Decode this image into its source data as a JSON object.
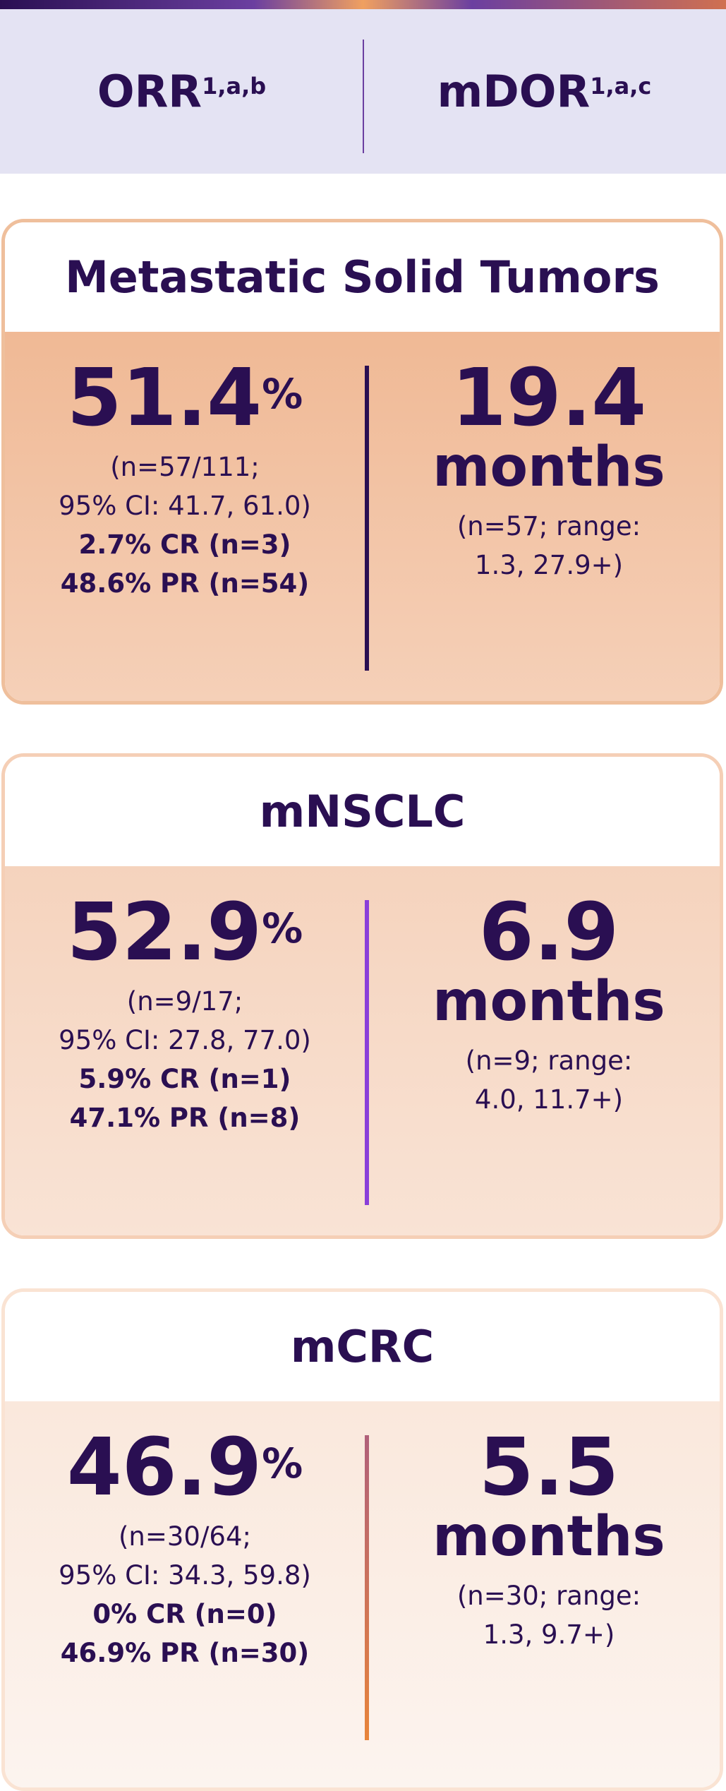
{
  "header": {
    "orr": {
      "label": "ORR",
      "superscript": "1,a,b"
    },
    "mdor": {
      "label": "mDOR",
      "superscript": "1,a,c"
    }
  },
  "cards": [
    {
      "title": "Metastatic Solid Tumors",
      "orr": {
        "value": "51.4",
        "unit": "%",
        "details": [
          "(n=57/111;",
          "95% CI: 41.7, 61.0)"
        ],
        "bold_details": [
          "2.7% CR (n=3)",
          "48.6% PR (n=54)"
        ]
      },
      "mdor": {
        "value": "19.4",
        "unit": "months",
        "details": [
          "(n=57; range:",
          "1.3, 27.9+)"
        ]
      }
    },
    {
      "title": "mNSCLC",
      "orr": {
        "value": "52.9",
        "unit": "%",
        "details": [
          "(n=9/17;",
          "95% CI: 27.8, 77.0)"
        ],
        "bold_details": [
          "5.9% CR (n=1)",
          "47.1% PR (n=8)"
        ]
      },
      "mdor": {
        "value": "6.9",
        "unit": "months",
        "details": [
          "(n=9; range:",
          "4.0, 11.7+)"
        ]
      }
    },
    {
      "title": "mCRC",
      "orr": {
        "value": "46.9",
        "unit": "%",
        "details": [
          "(n=30/64;",
          "95% CI: 34.3, 59.8)"
        ],
        "bold_details": [
          "0% CR (n=0)",
          "46.9% PR (n=30)"
        ]
      },
      "mdor": {
        "value": "5.5",
        "unit": "months",
        "details": [
          "(n=30; range:",
          "1.3, 9.7+)"
        ]
      }
    }
  ]
}
